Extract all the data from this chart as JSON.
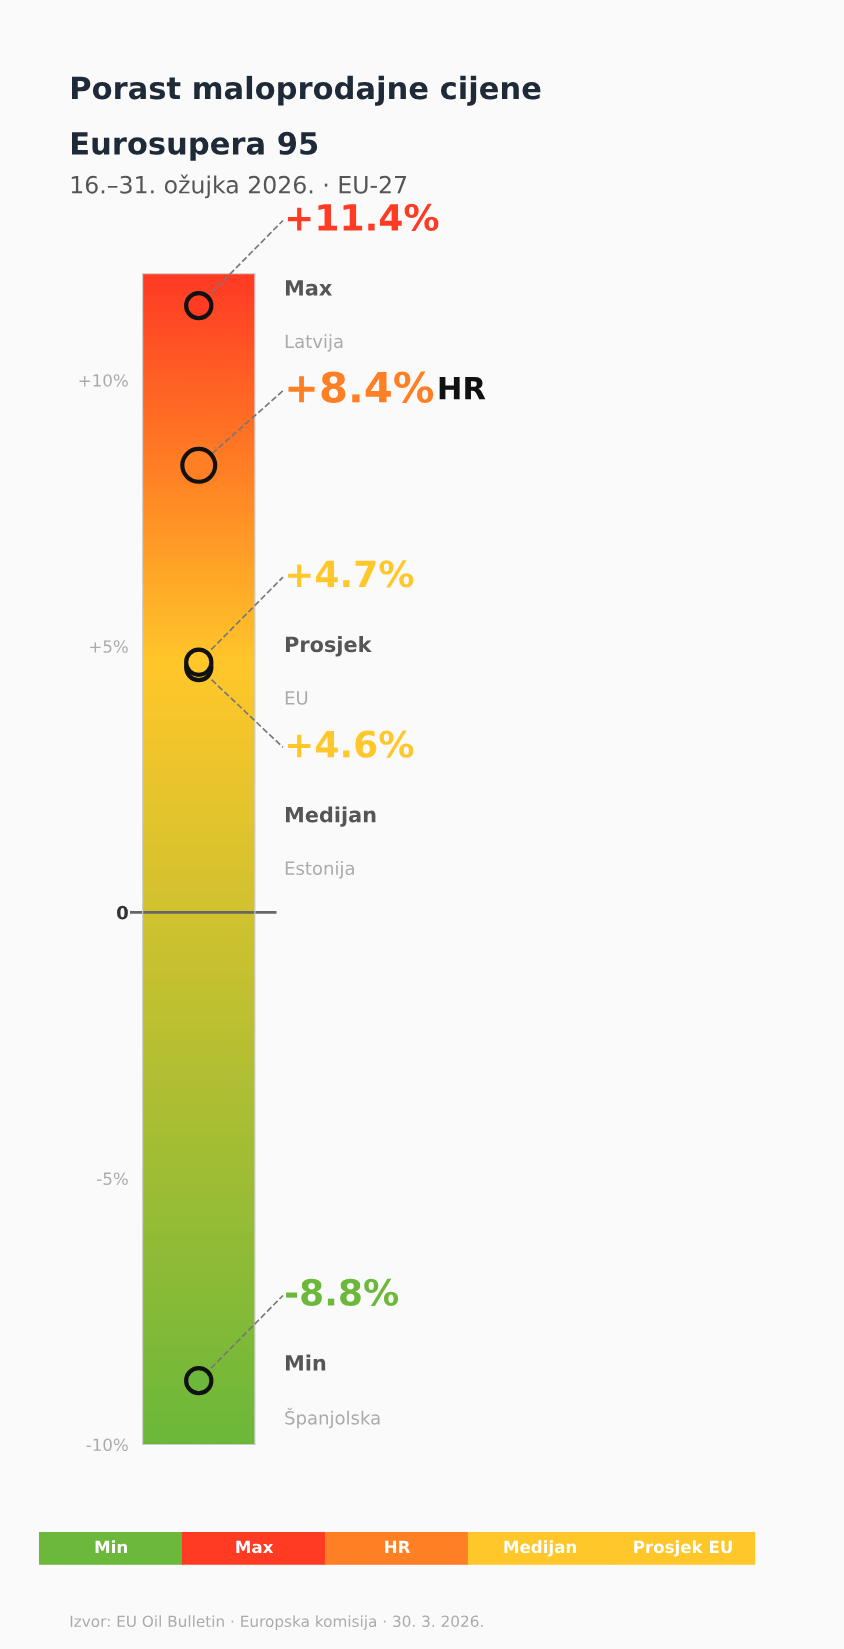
{
  "chart_data": {
    "type": "scatter",
    "title": "Porast maloprodajne cijene\nEurosupera 95",
    "subtitle": "16.–31. ožujka 2026. · EU-27",
    "categories": [
      null
    ],
    "series": [
      {
        "name": "Min",
        "color": "#6cb83a",
        "values": [
          -8.8
        ],
        "value_labels": [
          "-8.8%"
        ]
      },
      {
        "name": "Max",
        "color": "#ff3b24",
        "values": [
          11.4
        ],
        "value_labels": [
          "+11.4%"
        ]
      },
      {
        "name": "HR",
        "type": "bubble",
        "sizes": [
          1
        ],
        "color": "#ff7f24",
        "values": [
          8.4
        ],
        "value_labels": [
          "+8.4%"
        ]
      },
      {
        "name": "Medijan",
        "color": "#ffc72a",
        "values": [
          4.6
        ],
        "value_labels": [
          "+4.6%"
        ]
      },
      {
        "name": "Prosjek EU",
        "color": "#ffc72a",
        "values": [
          4.7
        ],
        "value_labels": [
          "+4.7%"
        ]
      }
    ],
    "annotations": [
      "Min",
      "Španjolska",
      "Max",
      "Latvija",
      "HR",
      "Medijan",
      "Estonija",
      "Prosjek",
      "EU",
      "Izvor: EU Oil Bulletin · Europska komisija · 30. 3. 2026."
    ],
    "ref_lines": [
      {
        "axis": "y",
        "value": 0,
        "color": "#666666"
      }
    ],
    "ylim": [
      -10,
      12
    ],
    "yticks": [
      {
        "value": -10,
        "label": "-10%"
      },
      {
        "value": -5,
        "label": "-5%"
      },
      {
        "value": 0,
        "label": "0"
      },
      {
        "value": 5,
        "label": "+5%"
      },
      {
        "value": 10,
        "label": "+10%"
      }
    ],
    "tick_labels": "y",
    "grid": false,
    "legend": "bottom",
    "marker": "circle"
  }
}
